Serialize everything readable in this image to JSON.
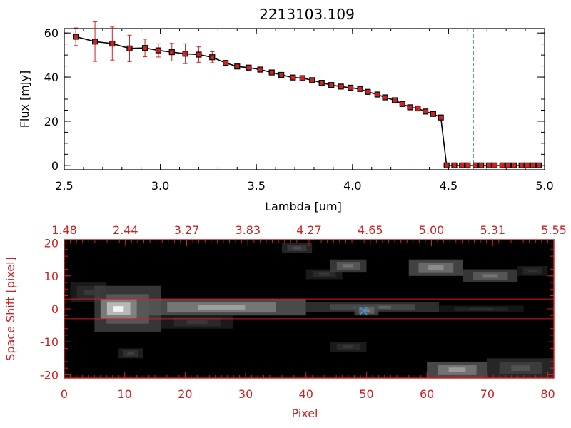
{
  "chart_data": [
    {
      "type": "scatter",
      "title": "2213103.109",
      "xlabel": "Lambda [um]",
      "ylabel": "Flux [mJy]",
      "xlim": [
        2.5,
        5.0
      ],
      "ylim": [
        -2,
        62
      ],
      "xticks": [
        "2.5",
        "3.0",
        "3.5",
        "4.0",
        "4.5",
        "5.0"
      ],
      "yticks": [
        "0",
        "20",
        "40",
        "60"
      ],
      "reference_line_x": 4.63,
      "series": [
        {
          "line_color": "#000000",
          "marker_color": "#cc2222",
          "error_color": "#cc2222",
          "x": [
            2.56,
            2.66,
            2.75,
            2.84,
            2.92,
            2.99,
            3.06,
            3.13,
            3.2,
            3.27,
            3.34,
            3.4,
            3.46,
            3.52,
            3.58,
            3.63,
            3.69,
            3.74,
            3.79,
            3.84,
            3.89,
            3.94,
            3.99,
            4.04,
            4.08,
            4.13,
            4.17,
            4.22,
            4.26,
            4.3,
            4.34,
            4.38,
            4.42,
            4.46,
            4.49,
            4.53,
            4.57,
            4.6,
            4.64,
            4.67,
            4.71,
            4.74,
            4.78,
            4.81,
            4.84,
            4.88,
            4.91,
            4.94,
            4.97
          ],
          "y": [
            58.3,
            56.1,
            55.2,
            53.0,
            53.2,
            52.1,
            51.3,
            50.6,
            50.2,
            49.0,
            46.4,
            44.8,
            44.3,
            43.4,
            42.1,
            41.0,
            39.8,
            39.5,
            38.6,
            37.4,
            36.4,
            35.7,
            35.2,
            34.6,
            33.3,
            32.1,
            30.8,
            29.5,
            27.8,
            26.3,
            25.8,
            24.4,
            23.3,
            21.7,
            0,
            0,
            0,
            0,
            0,
            0,
            0,
            0,
            0,
            0,
            0,
            0,
            0,
            0,
            0
          ],
          "err": [
            4.0,
            9.0,
            7.5,
            6.0,
            4.0,
            3.0,
            4.0,
            4.5,
            3.5,
            2.5,
            1.0,
            0.8,
            0.6,
            0.6,
            0.6,
            0.6,
            0.5,
            0.5,
            0.5,
            0.5,
            0.5,
            0.5,
            0.5,
            0.5,
            0.5,
            0.5,
            0.5,
            0.5,
            0.5,
            0.5,
            0.5,
            0.5,
            0.5,
            0.5,
            0,
            0,
            0,
            0,
            0,
            0,
            0,
            0,
            0,
            0,
            0,
            0,
            0,
            0,
            0
          ]
        }
      ]
    },
    {
      "type": "heatmap",
      "xlabel": "Pixel",
      "ylabel": "Space Shift [pixel]",
      "xlim": [
        0,
        81
      ],
      "ylim": [
        -21,
        21
      ],
      "xticks": [
        "0",
        "10",
        "20",
        "30",
        "40",
        "50",
        "60",
        "70",
        "80"
      ],
      "yticks": [
        "-20",
        "-10",
        "0",
        "10",
        "20"
      ],
      "top_axis_ticks": [
        "1.48",
        "2.44",
        "3.27",
        "3.83",
        "4.27",
        "4.65",
        "5.00",
        "5.31",
        "5.55"
      ],
      "aperture_lines_y": [
        3,
        -3
      ],
      "marker": {
        "x": 49.5,
        "y": -0.7,
        "color": "#3399ff"
      },
      "colormap": "grayscale",
      "axis_color": "#cc2222",
      "sources": [
        {
          "x0": 1,
          "x1": 7,
          "y0": 2,
          "y1": 8,
          "intensity": 0.22
        },
        {
          "x0": 5,
          "x1": 16,
          "y0": -7,
          "y1": 7,
          "intensity": 0.45
        },
        {
          "x0": 6,
          "x1": 12,
          "y0": -3,
          "y1": 3,
          "intensity": 0.95
        },
        {
          "x0": 12,
          "x1": 40,
          "y0": -2,
          "y1": 3,
          "intensity": 0.62
        },
        {
          "x0": 16,
          "x1": 28,
          "y0": -6,
          "y1": -2,
          "intensity": 0.22
        },
        {
          "x0": 40,
          "x1": 62,
          "y0": -1,
          "y1": 2,
          "intensity": 0.38
        },
        {
          "x0": 48,
          "x1": 52,
          "y0": -2,
          "y1": 1,
          "intensity": 0.5
        },
        {
          "x0": 62,
          "x1": 76,
          "y0": -1,
          "y1": 1,
          "intensity": 0.18
        },
        {
          "x0": 9,
          "x1": 13,
          "y0": -15,
          "y1": -12,
          "intensity": 0.25
        },
        {
          "x0": 36,
          "x1": 41,
          "y0": 17,
          "y1": 20,
          "intensity": 0.3
        },
        {
          "x0": 40,
          "x1": 46,
          "y0": 9,
          "y1": 12,
          "intensity": 0.22
        },
        {
          "x0": 44,
          "x1": 50,
          "y0": 11,
          "y1": 15,
          "intensity": 0.45
        },
        {
          "x0": 57,
          "x1": 66,
          "y0": 10,
          "y1": 15,
          "intensity": 0.55
        },
        {
          "x0": 66,
          "x1": 75,
          "y0": 8,
          "y1": 12,
          "intensity": 0.45
        },
        {
          "x0": 75,
          "x1": 80,
          "y0": 10,
          "y1": 13,
          "intensity": 0.2
        },
        {
          "x0": 44,
          "x1": 50,
          "y0": -13,
          "y1": -10,
          "intensity": 0.22
        },
        {
          "x0": 60,
          "x1": 70,
          "y0": -21,
          "y1": -16,
          "intensity": 0.6
        },
        {
          "x0": 70,
          "x1": 81,
          "y0": -21,
          "y1": -15,
          "intensity": 0.32
        }
      ]
    }
  ]
}
